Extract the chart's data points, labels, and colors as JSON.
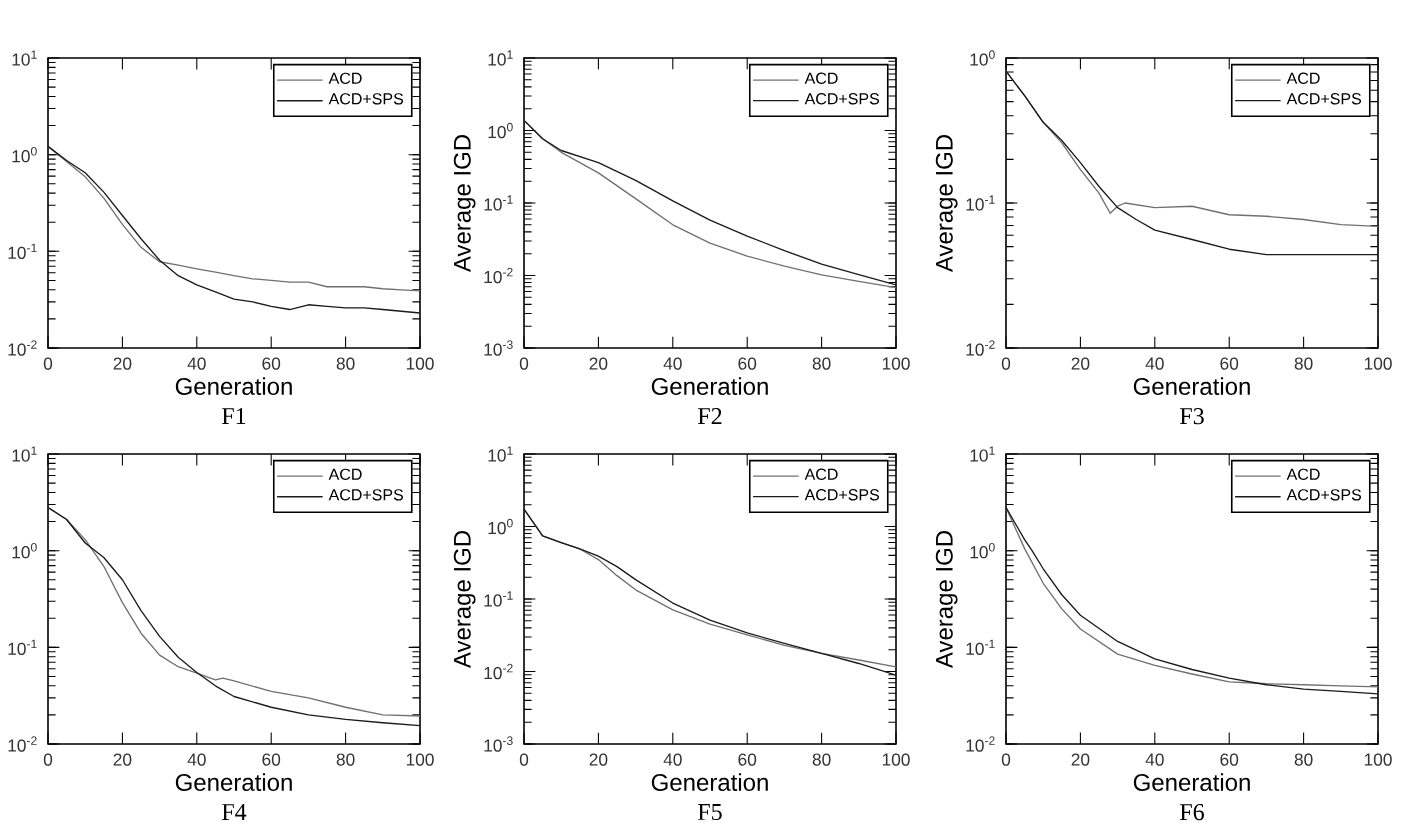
{
  "chart_data": [
    {
      "type": "line",
      "title": "F1",
      "xlabel": "Generation",
      "log": "y",
      "legend": "top right",
      "xlim": [
        0,
        100
      ],
      "xticks": [
        0,
        20,
        40,
        60,
        80,
        100
      ],
      "ylim": [
        0.01,
        10
      ],
      "yticks": [
        {
          "value": 0.01,
          "label": "10$^{-2}$"
        },
        {
          "value": 0.1,
          "label": "10$^{-1}$"
        },
        {
          "value": 1,
          "label": "10$^{0}$"
        },
        {
          "value": 10,
          "label": "10$^{1}$"
        }
      ],
      "series": [
        {
          "name": "ACD",
          "color": "#707070",
          "x": [
            0,
            5,
            10,
            15,
            20,
            25,
            30,
            35,
            40,
            45,
            50,
            55,
            60,
            65,
            70,
            75,
            80,
            85,
            90,
            95,
            100
          ],
          "values": [
            1.22,
            0.85,
            0.59,
            0.355,
            0.19,
            0.11,
            0.078,
            0.072,
            0.066,
            0.061,
            0.056,
            0.052,
            0.05,
            0.048,
            0.048,
            0.043,
            0.043,
            0.043,
            0.041,
            0.04,
            0.039
          ]
        },
        {
          "name": "ACD+SPS",
          "color": "#1a1a1a",
          "x": [
            0,
            5,
            10,
            15,
            20,
            25,
            30,
            35,
            40,
            45,
            50,
            55,
            60,
            65,
            70,
            75,
            80,
            85,
            90,
            95,
            100
          ],
          "values": [
            1.22,
            0.87,
            0.65,
            0.41,
            0.235,
            0.135,
            0.081,
            0.056,
            0.045,
            0.038,
            0.032,
            0.03,
            0.027,
            0.025,
            0.028,
            0.027,
            0.026,
            0.026,
            0.025,
            0.024,
            0.023
          ]
        }
      ]
    },
    {
      "type": "line",
      "title": "F2",
      "xlabel": "Generation",
      "ylabel": "Average IGD",
      "log": "y",
      "legend": "top right",
      "xlim": [
        0,
        100
      ],
      "xticks": [
        0,
        20,
        40,
        60,
        80,
        100
      ],
      "ylim": [
        0.001,
        10
      ],
      "yticks": [
        {
          "value": 0.001,
          "label": "10$^{-3}$"
        },
        {
          "value": 0.01,
          "label": "10$^{-2}$"
        },
        {
          "value": 0.1,
          "label": "10$^{-1}$"
        },
        {
          "value": 1,
          "label": "10$^{0}$"
        },
        {
          "value": 10,
          "label": "10$^{1}$"
        }
      ],
      "series": [
        {
          "name": "ACD",
          "color": "#707070",
          "x": [
            0,
            5,
            10,
            20,
            30,
            40,
            50,
            60,
            70,
            80,
            90,
            100
          ],
          "values": [
            1.38,
            0.77,
            0.5,
            0.26,
            0.115,
            0.05,
            0.028,
            0.0185,
            0.0135,
            0.0102,
            0.0083,
            0.0068
          ]
        },
        {
          "name": "ACD+SPS",
          "color": "#1a1a1a",
          "x": [
            0,
            5,
            10,
            20,
            30,
            40,
            50,
            60,
            70,
            80,
            90,
            100
          ],
          "values": [
            1.38,
            0.77,
            0.53,
            0.36,
            0.205,
            0.107,
            0.058,
            0.035,
            0.022,
            0.0144,
            0.0103,
            0.0074
          ]
        }
      ]
    },
    {
      "type": "line",
      "title": "F3",
      "xlabel": "Generation",
      "ylabel": "Average IGD",
      "log": "y",
      "legend": "top right",
      "xlim": [
        0,
        100
      ],
      "xticks": [
        0,
        20,
        40,
        60,
        80,
        100
      ],
      "ylim": [
        0.01,
        1
      ],
      "yticks": [
        {
          "value": 0.01,
          "label": "10$^{-2}$"
        },
        {
          "value": 0.1,
          "label": "10$^{-1}$"
        },
        {
          "value": 1,
          "label": "10$^{0}$"
        }
      ],
      "series": [
        {
          "name": "ACD",
          "color": "#707070",
          "x": [
            0,
            5,
            10,
            15,
            20,
            25,
            28,
            30,
            32,
            40,
            50,
            60,
            70,
            80,
            90,
            100
          ],
          "values": [
            0.81,
            0.55,
            0.36,
            0.26,
            0.17,
            0.117,
            0.085,
            0.095,
            0.1,
            0.093,
            0.095,
            0.083,
            0.081,
            0.077,
            0.071,
            0.069
          ]
        },
        {
          "name": "ACD+SPS",
          "color": "#1a1a1a",
          "x": [
            0,
            5,
            10,
            15,
            20,
            25,
            30,
            35,
            40,
            50,
            60,
            70,
            80,
            90,
            100
          ],
          "values": [
            0.81,
            0.55,
            0.36,
            0.27,
            0.19,
            0.13,
            0.093,
            0.077,
            0.065,
            0.056,
            0.048,
            0.044,
            0.044,
            0.044,
            0.044
          ]
        }
      ]
    },
    {
      "type": "line",
      "title": "F4",
      "xlabel": "Generation",
      "log": "y",
      "legend": "top right",
      "xlim": [
        0,
        100
      ],
      "xticks": [
        0,
        20,
        40,
        60,
        80,
        100
      ],
      "ylim": [
        0.01,
        10
      ],
      "yticks": [
        {
          "value": 0.01,
          "label": "10$^{-2}$"
        },
        {
          "value": 0.1,
          "label": "10$^{-1}$"
        },
        {
          "value": 1,
          "label": "10$^{0}$"
        },
        {
          "value": 10,
          "label": "10$^{1}$"
        }
      ],
      "series": [
        {
          "name": "ACD",
          "color": "#707070",
          "x": [
            0,
            5,
            10,
            15,
            20,
            25,
            30,
            35,
            40,
            45,
            47,
            50,
            60,
            70,
            80,
            90,
            100
          ],
          "values": [
            2.8,
            2.1,
            1.3,
            0.69,
            0.29,
            0.14,
            0.083,
            0.063,
            0.054,
            0.046,
            0.048,
            0.045,
            0.035,
            0.03,
            0.024,
            0.02,
            0.0195
          ]
        },
        {
          "name": "ACD+SPS",
          "color": "#1a1a1a",
          "x": [
            0,
            5,
            10,
            15,
            20,
            25,
            30,
            35,
            40,
            45,
            50,
            60,
            70,
            80,
            90,
            100
          ],
          "values": [
            2.8,
            2.1,
            1.2,
            0.85,
            0.5,
            0.24,
            0.13,
            0.079,
            0.055,
            0.04,
            0.031,
            0.024,
            0.02,
            0.018,
            0.0166,
            0.0155
          ]
        }
      ]
    },
    {
      "type": "line",
      "title": "F5",
      "xlabel": "Generation",
      "ylabel": "Average IGD",
      "log": "y",
      "legend": "top right",
      "xlim": [
        0,
        100
      ],
      "xticks": [
        0,
        20,
        40,
        60,
        80,
        100
      ],
      "ylim": [
        0.001,
        10
      ],
      "yticks": [
        {
          "value": 0.001,
          "label": "10$^{-3}$"
        },
        {
          "value": 0.01,
          "label": "10$^{-2}$"
        },
        {
          "value": 0.1,
          "label": "10$^{-1}$"
        },
        {
          "value": 1,
          "label": "10$^{0}$"
        },
        {
          "value": 10,
          "label": "10$^{1}$"
        }
      ],
      "series": [
        {
          "name": "ACD",
          "color": "#707070",
          "x": [
            0,
            5,
            10,
            15,
            20,
            25,
            30,
            40,
            50,
            60,
            70,
            80,
            90,
            100
          ],
          "values": [
            1.74,
            0.74,
            0.6,
            0.49,
            0.35,
            0.21,
            0.134,
            0.071,
            0.045,
            0.032,
            0.023,
            0.0178,
            0.0144,
            0.0116
          ]
        },
        {
          "name": "ACD+SPS",
          "color": "#1a1a1a",
          "x": [
            0,
            5,
            10,
            15,
            20,
            25,
            30,
            40,
            50,
            60,
            70,
            80,
            90,
            100
          ],
          "values": [
            1.74,
            0.74,
            0.6,
            0.49,
            0.39,
            0.28,
            0.185,
            0.088,
            0.051,
            0.034,
            0.0245,
            0.0178,
            0.0129,
            0.0089
          ]
        }
      ]
    },
    {
      "type": "line",
      "title": "F6",
      "xlabel": "Generation",
      "ylabel": "Average IGD",
      "log": "y",
      "legend": "top right",
      "xlim": [
        0,
        100
      ],
      "xticks": [
        0,
        20,
        40,
        60,
        80,
        100
      ],
      "ylim": [
        0.01,
        10
      ],
      "yticks": [
        {
          "value": 0.01,
          "label": "10$^{-2}$"
        },
        {
          "value": 0.1,
          "label": "10$^{-1}$"
        },
        {
          "value": 1,
          "label": "10$^{0}$"
        },
        {
          "value": 10,
          "label": "10$^{1}$"
        }
      ],
      "series": [
        {
          "name": "ACD",
          "color": "#707070",
          "x": [
            0,
            5,
            10,
            15,
            20,
            30,
            40,
            50,
            60,
            70,
            80,
            90,
            100
          ],
          "values": [
            2.8,
            1.05,
            0.46,
            0.25,
            0.155,
            0.085,
            0.065,
            0.053,
            0.044,
            0.042,
            0.041,
            0.04,
            0.039
          ]
        },
        {
          "name": "ACD+SPS",
          "color": "#1a1a1a",
          "x": [
            0,
            5,
            7,
            10,
            15,
            20,
            30,
            40,
            50,
            60,
            70,
            80,
            90,
            100
          ],
          "values": [
            2.8,
            1.3,
            1.0,
            0.65,
            0.35,
            0.215,
            0.115,
            0.076,
            0.059,
            0.048,
            0.041,
            0.037,
            0.035,
            0.033
          ]
        }
      ]
    }
  ]
}
